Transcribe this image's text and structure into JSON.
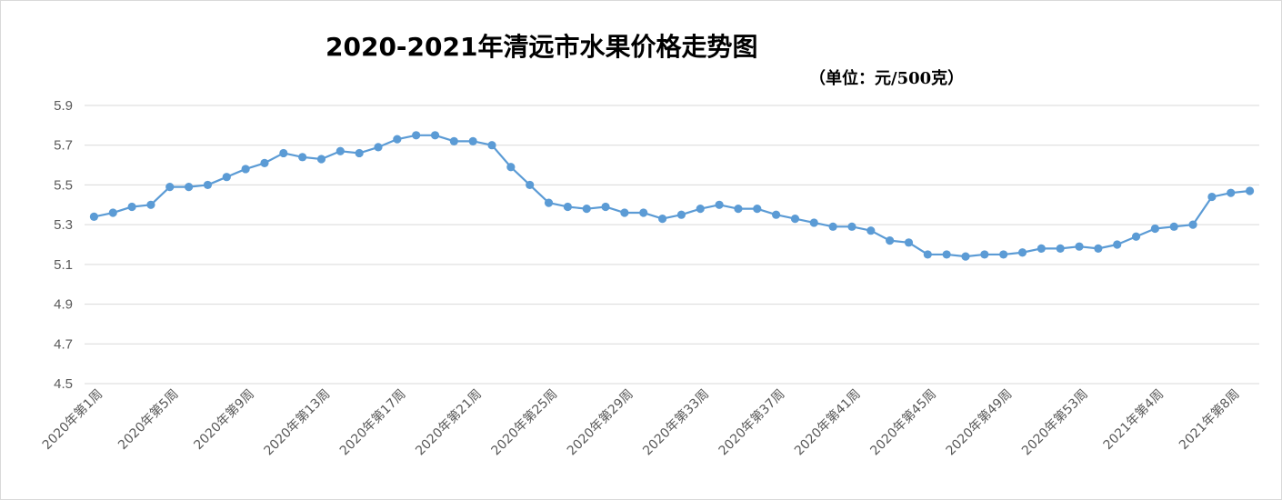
{
  "chart_data": {
    "type": "line",
    "title": "2020-2021年清远市水果价格走势图",
    "subtitle": "（单位：元/500克）",
    "xlabel": "",
    "ylabel": "",
    "ylim": [
      4.5,
      5.9
    ],
    "yticks": [
      "5.9",
      "5.7",
      "5.5",
      "5.3",
      "5.1",
      "4.9",
      "4.7",
      "4.5"
    ],
    "grid": true,
    "legend": "none",
    "line_color": "#5b9bd5",
    "x": [
      "2020年第1周",
      "2020年第2周",
      "2020年第3周",
      "2020年第4周",
      "2020年第5周",
      "2020年第6周",
      "2020年第7周",
      "2020年第8周",
      "2020年第9周",
      "2020年第10周",
      "2020年第11周",
      "2020年第12周",
      "2020年第13周",
      "2020年第14周",
      "2020年第15周",
      "2020年第16周",
      "2020年第17周",
      "2020年第18周",
      "2020年第19周",
      "2020年第20周",
      "2020年第21周",
      "2020年第22周",
      "2020年第23周",
      "2020年第24周",
      "2020年第25周",
      "2020年第26周",
      "2020年第27周",
      "2020年第28周",
      "2020年第29周",
      "2020年第30周",
      "2020年第31周",
      "2020年第32周",
      "2020年第33周",
      "2020年第34周",
      "2020年第35周",
      "2020年第36周",
      "2020年第37周",
      "2020年第38周",
      "2020年第39周",
      "2020年第40周",
      "2020年第41周",
      "2020年第42周",
      "2020年第43周",
      "2020年第44周",
      "2020年第45周",
      "2020年第46周",
      "2020年第47周",
      "2020年第48周",
      "2020年第49周",
      "2020年第50周",
      "2020年第51周",
      "2020年第52周",
      "2020年第53周",
      "2021年第1周",
      "2021年第2周",
      "2021年第3周",
      "2021年第4周",
      "2021年第5周",
      "2021年第6周",
      "2021年第7周",
      "2021年第8周",
      "2021年第9周"
    ],
    "xtick_labels": [
      "2020年第1周",
      "2020年第5周",
      "2020年第9周",
      "2020年第13周",
      "2020年第17周",
      "2020年第21周",
      "2020年第25周",
      "2020年第29周",
      "2020年第33周",
      "2020年第37周",
      "2020年第41周",
      "2020年第45周",
      "2020年第49周",
      "2020年第53周",
      "2021年第4周",
      "2021年第8周"
    ],
    "values": [
      5.34,
      5.36,
      5.39,
      5.4,
      5.49,
      5.49,
      5.5,
      5.54,
      5.58,
      5.61,
      5.66,
      5.64,
      5.63,
      5.67,
      5.66,
      5.69,
      5.73,
      5.75,
      5.75,
      5.72,
      5.72,
      5.7,
      5.59,
      5.5,
      5.41,
      5.39,
      5.38,
      5.39,
      5.36,
      5.36,
      5.33,
      5.35,
      5.38,
      5.4,
      5.38,
      5.38,
      5.35,
      5.33,
      5.31,
      5.29,
      5.29,
      5.27,
      5.22,
      5.21,
      5.15,
      5.15,
      5.14,
      5.15,
      5.15,
      5.16,
      5.18,
      5.18,
      5.19,
      5.18,
      5.2,
      5.24,
      5.28,
      5.29,
      5.3,
      5.44,
      5.46,
      5.47
    ]
  }
}
